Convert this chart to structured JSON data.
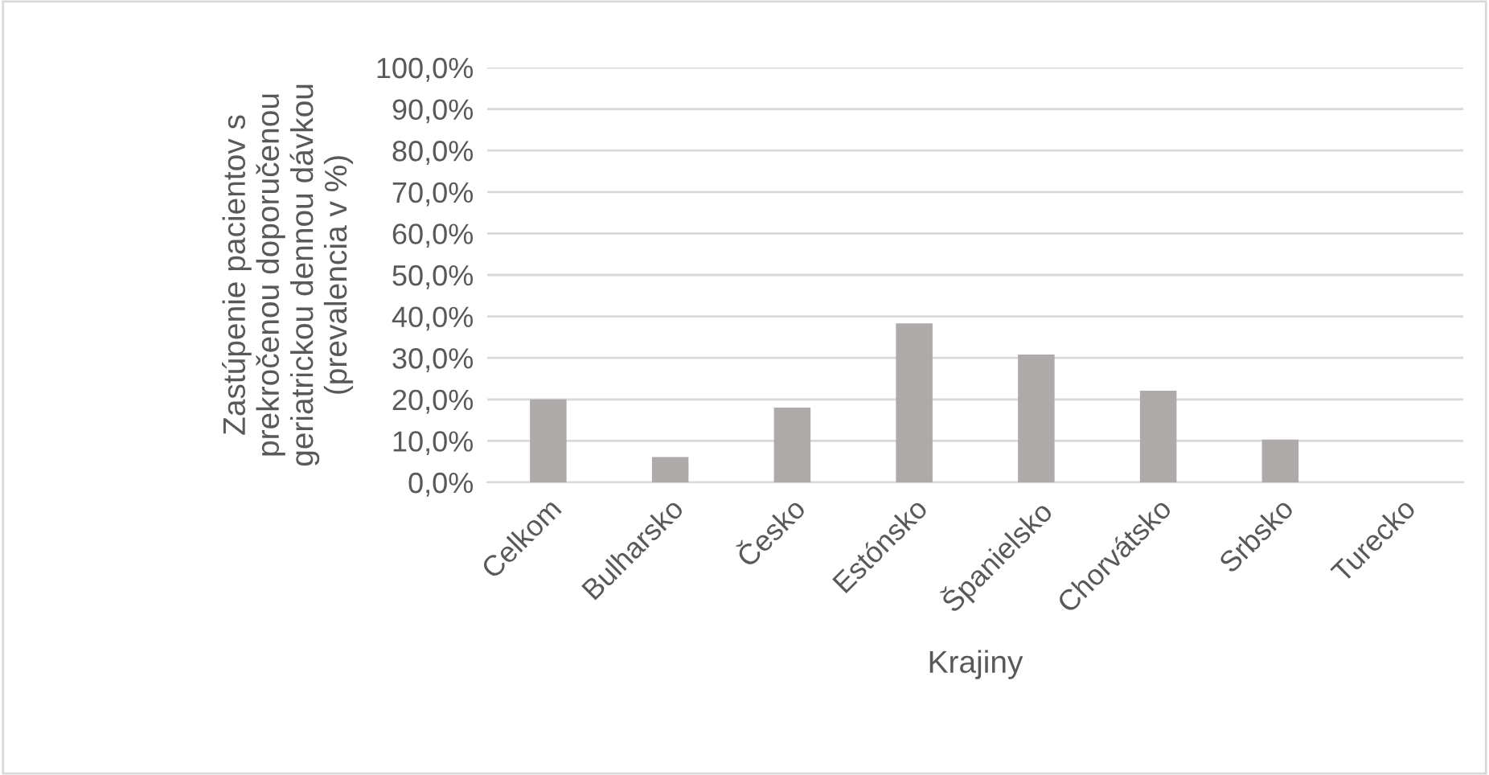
{
  "chart_data": {
    "type": "bar",
    "xlabel": "Krajiny",
    "ylabel": "Zastúpenie pacientov s\nprekročenou doporučenou\ngeriatrickou dennou dávkou\n(prevalencia v %)",
    "categories": [
      "Celkom",
      "Bulharsko",
      "Česko",
      "Estónsko",
      "Španielsko",
      "Chorvátsko",
      "Srbsko",
      "Turecko"
    ],
    "values": [
      20.0,
      6.1,
      18.0,
      38.3,
      30.8,
      22.1,
      10.3,
      0
    ],
    "color": "#aeaaaa",
    "ylim": [
      0,
      100
    ],
    "yticks": [
      {
        "value": 0,
        "label": "0,0%"
      },
      {
        "value": 10,
        "label": "10,0%"
      },
      {
        "value": 20,
        "label": "20,0%"
      },
      {
        "value": 30,
        "label": "30,0%"
      },
      {
        "value": 40,
        "label": "40,0%"
      },
      {
        "value": 50,
        "label": "50,0%"
      },
      {
        "value": 60,
        "label": "60,0%"
      },
      {
        "value": 70,
        "label": "70,0%"
      },
      {
        "value": 80,
        "label": "80,0%"
      },
      {
        "value": 90,
        "label": "90,0%"
      },
      {
        "value": 100,
        "label": "100,0%"
      }
    ],
    "grid": "y"
  }
}
